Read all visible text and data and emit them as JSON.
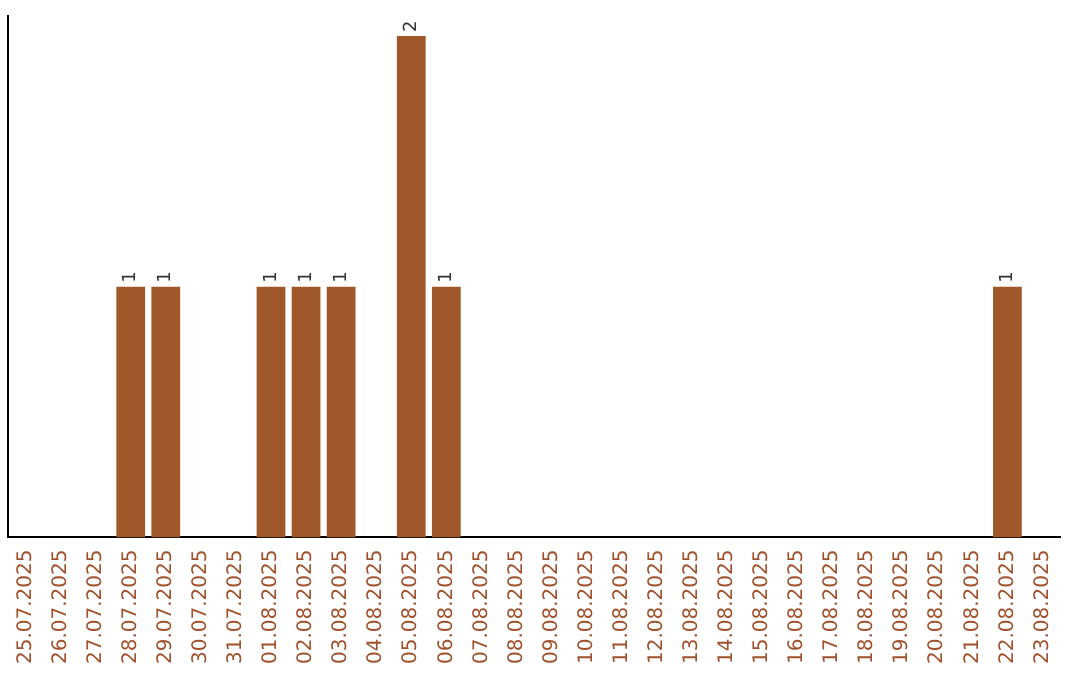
{
  "chart_data": {
    "type": "bar",
    "categories": [
      "25.07.2025",
      "26.07.2025",
      "27.07.2025",
      "28.07.2025",
      "29.07.2025",
      "30.07.2025",
      "31.07.2025",
      "01.08.2025",
      "02.08.2025",
      "03.08.2025",
      "04.08.2025",
      "05.08.2025",
      "06.08.2025",
      "07.08.2025",
      "08.08.2025",
      "09.08.2025",
      "10.08.2025",
      "11.08.2025",
      "12.08.2025",
      "13.08.2025",
      "14.08.2025",
      "15.08.2025",
      "16.08.2025",
      "17.08.2025",
      "18.08.2025",
      "19.08.2025",
      "20.08.2025",
      "21.08.2025",
      "22.08.2025",
      "23.08.2025"
    ],
    "values": [
      0,
      0,
      0,
      1,
      1,
      0,
      0,
      1,
      1,
      1,
      0,
      2,
      1,
      0,
      0,
      0,
      0,
      0,
      0,
      0,
      0,
      0,
      0,
      0,
      0,
      0,
      0,
      0,
      1,
      0
    ],
    "value_labels": [
      null,
      null,
      null,
      "1",
      "1",
      null,
      null,
      "1",
      "1",
      "1",
      null,
      "2",
      "1",
      null,
      null,
      null,
      null,
      null,
      null,
      null,
      null,
      null,
      null,
      null,
      null,
      null,
      null,
      null,
      "1",
      null
    ],
    "color": "#a0582a",
    "ylim": [
      0,
      2.08
    ],
    "grid": false,
    "legend": false,
    "tick_labels": "x"
  }
}
